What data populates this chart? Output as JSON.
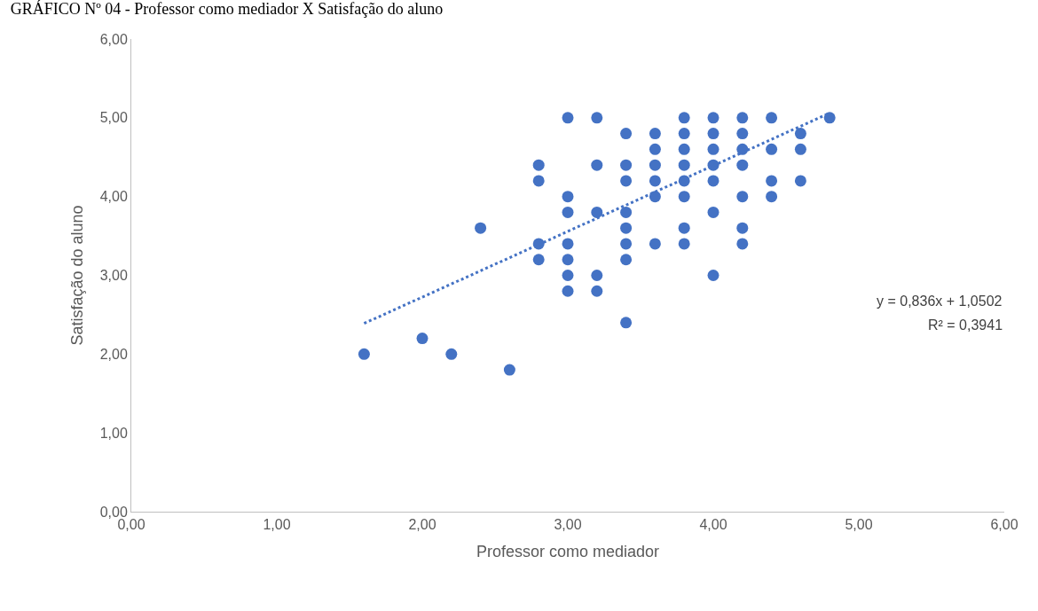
{
  "chart_data": {
    "type": "scatter",
    "title": "GRÁFICO Nº 04 - Professor como mediador X Satisfação do aluno",
    "xlabel": "Professor como mediador",
    "ylabel": "Satisfação do aluno",
    "xlim": [
      0,
      6
    ],
    "ylim": [
      0,
      6
    ],
    "xticks": [
      {
        "value": 0,
        "label": "0,00"
      },
      {
        "value": 1,
        "label": "1,00"
      },
      {
        "value": 2,
        "label": "2,00"
      },
      {
        "value": 3,
        "label": "3,00"
      },
      {
        "value": 4,
        "label": "4,00"
      },
      {
        "value": 5,
        "label": "5,00"
      },
      {
        "value": 6,
        "label": "6,00"
      }
    ],
    "yticks": [
      {
        "value": 0,
        "label": "0,00"
      },
      {
        "value": 1,
        "label": "1,00"
      },
      {
        "value": 2,
        "label": "2,00"
      },
      {
        "value": 3,
        "label": "3,00"
      },
      {
        "value": 4,
        "label": "4,00"
      },
      {
        "value": 5,
        "label": "5,00"
      },
      {
        "value": 6,
        "label": "6,00"
      }
    ],
    "grid": false,
    "marker": "circle",
    "series": [
      {
        "color": "#4472c4",
        "x": [
          1.6,
          2.0,
          2.2,
          2.4,
          2.6,
          2.8,
          2.8,
          2.8,
          2.8,
          3.0,
          3.0,
          3.0,
          3.0,
          3.0,
          3.0,
          3.0,
          3.2,
          3.2,
          3.2,
          3.2,
          3.2,
          3.4,
          3.4,
          3.4,
          3.4,
          3.4,
          3.4,
          3.4,
          3.4,
          3.6,
          3.6,
          3.6,
          3.6,
          3.6,
          3.6,
          3.8,
          3.8,
          3.8,
          3.8,
          3.8,
          3.8,
          3.8,
          3.8,
          4.0,
          4.0,
          4.0,
          4.0,
          4.0,
          4.0,
          4.0,
          4.2,
          4.2,
          4.2,
          4.2,
          4.2,
          4.2,
          4.2,
          4.4,
          4.4,
          4.4,
          4.4,
          4.6,
          4.6,
          4.6,
          4.8
        ],
        "values": [
          2.0,
          2.2,
          2.0,
          3.6,
          1.8,
          4.4,
          4.2,
          3.4,
          3.2,
          5.0,
          4.0,
          3.8,
          3.4,
          3.2,
          3.0,
          2.8,
          5.0,
          4.4,
          3.8,
          3.0,
          2.8,
          4.8,
          4.4,
          4.2,
          3.8,
          3.6,
          3.4,
          3.2,
          2.4,
          4.8,
          4.6,
          4.4,
          4.2,
          4.0,
          3.4,
          5.0,
          4.8,
          4.6,
          4.4,
          4.2,
          4.0,
          3.6,
          3.4,
          5.0,
          4.8,
          4.6,
          4.4,
          4.2,
          3.8,
          3.0,
          5.0,
          4.8,
          4.6,
          4.4,
          4.0,
          3.6,
          3.4,
          5.0,
          4.6,
          4.2,
          4.0,
          4.8,
          4.6,
          4.2,
          5.0
        ]
      },
      {
        "type": "line",
        "color": "#4472c4",
        "line_style": "dotted",
        "marker": "none",
        "x": [
          1.6,
          4.8
        ],
        "values": [
          2.39,
          5.06
        ]
      }
    ],
    "annotations": [
      "y = 0,836x + 1,0502",
      "R² = 0,3941"
    ]
  }
}
